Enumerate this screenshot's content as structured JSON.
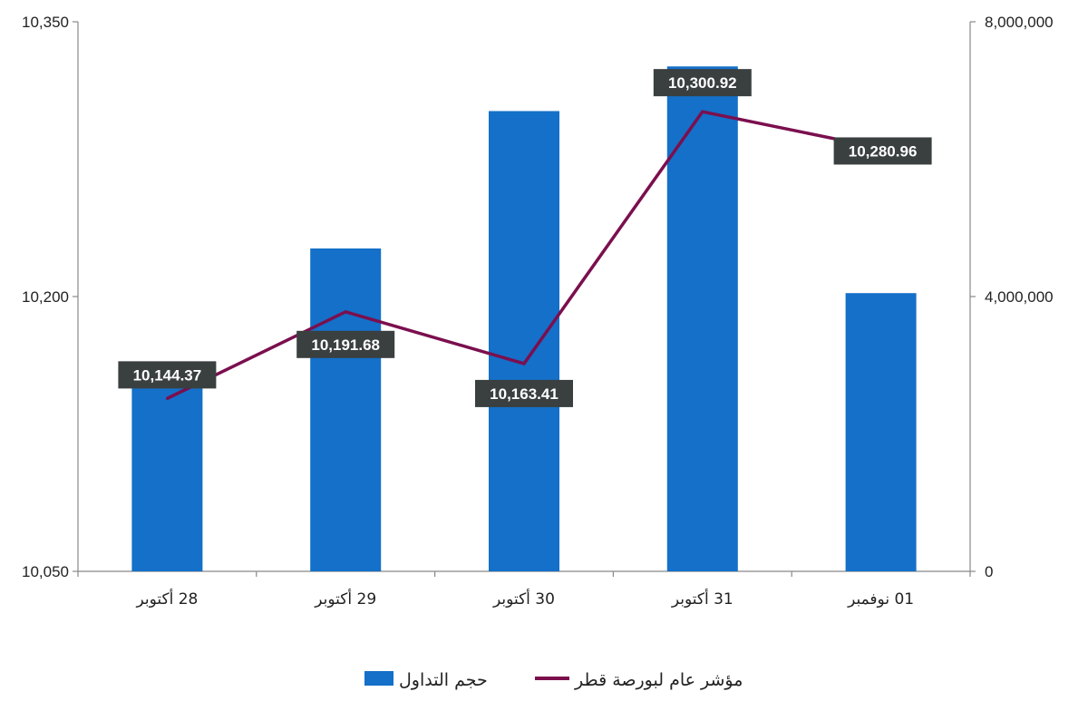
{
  "chart_data": {
    "type": "bar",
    "categories": [
      "28 أكتوبر",
      "29 أكتوبر",
      "30 أكتوبر",
      "31 أكتوبر",
      "01 نوفمبر"
    ],
    "series": [
      {
        "name": "حجم التداول",
        "type": "bar",
        "axis": "right",
        "values": [
          2800000,
          4700000,
          6700000,
          7350000,
          4050000
        ]
      },
      {
        "name": "مؤشر عام لبورصة قطر",
        "type": "line",
        "axis": "left",
        "values": [
          10144.37,
          10191.68,
          10163.41,
          10300.92,
          10280.96
        ],
        "labels": [
          "10,144.37",
          "10,191.68",
          "10,163.41",
          "10,300.92",
          "10,280.96"
        ]
      }
    ],
    "left_axis": {
      "ylim": [
        10050,
        10350
      ],
      "ticks": [
        10050,
        10200,
        10350
      ],
      "tick_labels": [
        "10,050",
        "10,200",
        "10,350"
      ]
    },
    "right_axis": {
      "ylim": [
        0,
        8000000
      ],
      "ticks": [
        0,
        4000000,
        8000000
      ],
      "tick_labels": [
        "0",
        "4,000,000",
        "8,000,000"
      ]
    },
    "grid": false,
    "legend_position": "bottom",
    "colors": {
      "bar": "#1470C8",
      "line": "#7B0F4E",
      "label_bg": "#3A3F3F",
      "axis": "#888888"
    }
  },
  "legend": {
    "bar_label": "حجم التداول",
    "line_label": "مؤشر عام لبورصة قطر"
  }
}
